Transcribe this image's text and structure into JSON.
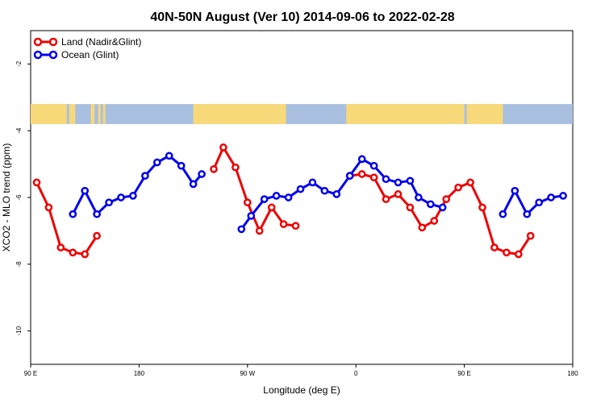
{
  "chart_data": {
    "type": "line",
    "title": "40N-50N August (Ver 10)   2014-09-06 to 2022-02-28",
    "xlabel": "Longitude (deg E)",
    "ylabel": "XCO2 - MLO trend (ppm)",
    "xlim": [
      90,
      540
    ],
    "ylim": [
      -11,
      -1
    ],
    "x_ticks": [
      {
        "value": 90,
        "label": "90 E"
      },
      {
        "value": 180,
        "label": "180"
      },
      {
        "value": 270,
        "label": "90 W"
      },
      {
        "value": 360,
        "label": "0"
      },
      {
        "value": 450,
        "label": "90 E"
      },
      {
        "value": 540,
        "label": "180"
      }
    ],
    "y_ticks": [
      {
        "value": -2,
        "label": "-2"
      },
      {
        "value": -4,
        "label": "-4"
      },
      {
        "value": -6,
        "label": "-6"
      },
      {
        "value": -8,
        "label": "-8"
      },
      {
        "value": -10,
        "label": "-10"
      }
    ],
    "legend_position": "top-left",
    "grid": false,
    "map_strip": {
      "y_top": -3.2,
      "y_bottom": -3.8,
      "land_color": "#f7d97a",
      "ocean_color": "#a9bfe0"
    },
    "series": [
      {
        "name": "Land (Nadir&Glint)",
        "color": "#ee0000",
        "segments": [
          [
            [
              95,
              -5.55
            ],
            [
              105,
              -6.3
            ],
            [
              115,
              -7.5
            ],
            [
              125,
              -7.65
            ],
            [
              135,
              -7.7
            ],
            [
              145,
              -7.15
            ]
          ],
          [
            [
              242,
              -5.15
            ],
            [
              250,
              -4.5
            ],
            [
              260,
              -5.1
            ],
            [
              270,
              -6.15
            ],
            [
              280,
              -7.0
            ],
            [
              290,
              -6.3
            ],
            [
              300,
              -6.8
            ],
            [
              310,
              -6.85
            ]
          ],
          [
            [
              355,
              -5.35
            ],
            [
              365,
              -5.3
            ],
            [
              375,
              -5.4
            ],
            [
              385,
              -6.05
            ],
            [
              395,
              -5.9
            ],
            [
              405,
              -6.3
            ],
            [
              415,
              -6.9
            ],
            [
              425,
              -6.7
            ],
            [
              435,
              -6.05
            ],
            [
              445,
              -5.7
            ],
            [
              455,
              -5.55
            ],
            [
              465,
              -6.3
            ],
            [
              475,
              -7.5
            ],
            [
              485,
              -7.65
            ],
            [
              495,
              -7.7
            ],
            [
              505,
              -7.15
            ]
          ]
        ]
      },
      {
        "name": "Ocean (Glint)",
        "color": "#0000ee",
        "segments": [
          [
            [
              125,
              -6.5
            ],
            [
              135,
              -5.8
            ],
            [
              145,
              -6.5
            ],
            [
              155,
              -6.15
            ],
            [
              165,
              -6.0
            ],
            [
              175,
              -5.95
            ],
            [
              185,
              -5.35
            ],
            [
              195,
              -4.95
            ],
            [
              205,
              -4.75
            ],
            [
              215,
              -5.05
            ],
            [
              225,
              -5.6
            ],
            [
              232,
              -5.3
            ]
          ],
          [
            [
              265,
              -6.95
            ],
            [
              273,
              -6.55
            ],
            [
              284,
              -6.05
            ],
            [
              294,
              -5.95
            ],
            [
              304,
              -6.0
            ],
            [
              314,
              -5.75
            ],
            [
              324,
              -5.55
            ],
            [
              334,
              -5.8
            ],
            [
              344,
              -5.9
            ],
            [
              355,
              -5.35
            ],
            [
              365,
              -4.85
            ],
            [
              375,
              -5.05
            ],
            [
              385,
              -5.45
            ],
            [
              395,
              -5.55
            ],
            [
              405,
              -5.5
            ],
            [
              412,
              -6.0
            ],
            [
              422,
              -6.2
            ],
            [
              432,
              -6.3
            ]
          ],
          [
            [
              482,
              -6.5
            ],
            [
              492,
              -5.8
            ],
            [
              502,
              -6.5
            ],
            [
              512,
              -6.15
            ],
            [
              522,
              -6.0
            ],
            [
              532,
              -5.95
            ]
          ]
        ]
      }
    ]
  }
}
